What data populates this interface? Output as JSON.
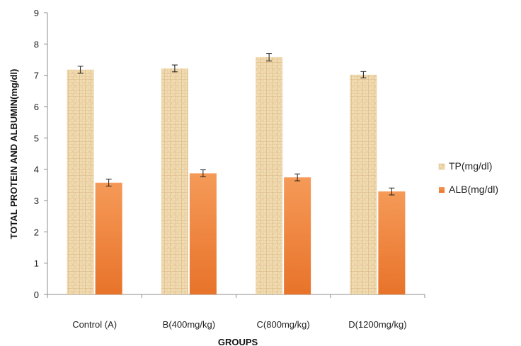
{
  "chart_data": {
    "type": "bar",
    "xlabel": "GROUPS",
    "ylabel": "TOTAL PROTEIN AND ALBUMIN(mg/dl)",
    "ylim": [
      0,
      9
    ],
    "yticks": [
      "0",
      "1",
      "2",
      "3",
      "4",
      "5",
      "6",
      "7",
      "8",
      "9"
    ],
    "categories": [
      "Control (A)",
      "B(400mg/kg)",
      "C(800mg/kg)",
      "D(1200mg/kg)"
    ],
    "series": [
      {
        "name": "TP(mg/dl)",
        "values": [
          7.18,
          7.22,
          7.58,
          7.02
        ],
        "errors": [
          0.11,
          0.11,
          0.12,
          0.1
        ],
        "color": "#f2dcb1",
        "texture": "papyrus"
      },
      {
        "name": "ALB(mg/dl)",
        "values": [
          3.57,
          3.87,
          3.74,
          3.29
        ],
        "errors": [
          0.11,
          0.11,
          0.11,
          0.11
        ],
        "color": "#ed7d31"
      }
    ],
    "grid": false,
    "legend": "right"
  }
}
